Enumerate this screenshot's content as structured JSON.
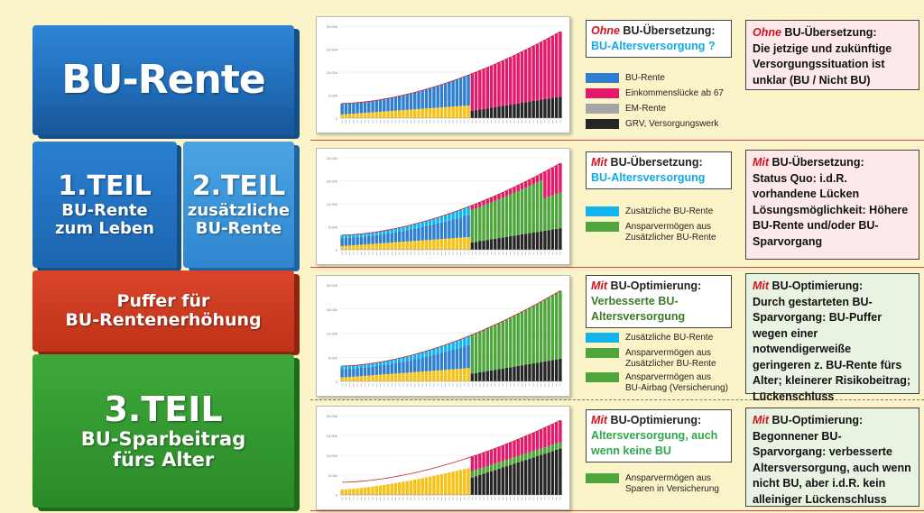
{
  "blocks": {
    "top": "BU-Rente",
    "teil1_title": "1.TEIL",
    "teil1_line1": "BU-Rente",
    "teil1_line2": "zum Leben",
    "teil2_title": "2.TEIL",
    "teil2_line1": "zusätzliche",
    "teil2_line2": "BU-Rente",
    "puffer_line1": "Puffer für",
    "puffer_line2": "BU-Rentenerhöhung",
    "teil3_title": "3.TEIL",
    "teil3_line1": "BU-Sparbeitrag",
    "teil3_line2": "fürs Alter"
  },
  "colors": {
    "bu_rente": "#2f7fd1",
    "einkommensluecke": "#e5196b",
    "em_rente": "#a5a5a5",
    "grv": "#262626",
    "zusaetzliche_bu": "#12b4f0",
    "anspar": "#4ea53c",
    "yellow_base": "#f6c21a",
    "trend_line": "#c0272d"
  },
  "rows": [
    {
      "q_em": "Ohne",
      "q_rest": " BU-Übersetzung:",
      "q_value": "BU-Altersversorgung ?",
      "legend": [
        {
          "label": "BU-Rente",
          "color": "#2f7fd1"
        },
        {
          "label": "Einkommenslücke ab 67",
          "color": "#e5196b"
        },
        {
          "label": "EM-Rente",
          "color": "#a5a5a5"
        },
        {
          "label": "GRV, Versorgungswerk",
          "color": "#262626"
        }
      ],
      "d_em": "Ohne",
      "d_head_rest": " BU-Übersetzung:",
      "d_text": "Die jetzige und zukünftige Versorgungssituation ist unklar (BU / Nicht BU)"
    },
    {
      "q_em": "Mit",
      "q_rest": " BU-Übersetzung:",
      "q_value": "BU-Altersversorgung",
      "legend": [
        {
          "label": "Zusätzliche BU-Rente",
          "color": "#12b4f0"
        },
        {
          "label": "Ansparvermögen aus",
          "label2": "Zusätzlicher BU-Rente",
          "color": "#4ea53c"
        }
      ],
      "d_em": "Mit",
      "d_head_rest": " BU-Übersetzung:",
      "d_text": "Status Quo: i.d.R. vorhandene Lücken Lösungsmöglichkeit: Höhere BU-Rente und/oder BU-Sparvorgang"
    },
    {
      "q_em": "Mit",
      "q_rest": " BU-Optimierung:",
      "q_value": "Verbesserte BU-Altersversorgung",
      "legend": [
        {
          "label": "Zusätzliche BU-Rente",
          "color": "#12b4f0"
        },
        {
          "label": "Ansparvermögen aus",
          "label2": "Zusätzlicher BU-Rente",
          "color": "#4ea53c"
        },
        {
          "label": "Ansparvermögen aus",
          "label2": "BU-Airbag (Versicherung)",
          "color": "#4ea53c"
        }
      ],
      "d_em": "Mit",
      "d_head_rest": " BU-Optimierung:",
      "d_text": "Durch gestarteten BU-Sparvorgang: BU-Puffer wegen einer notwendigerweiße geringeren z. BU-Rente fürs Alter; kleinerer Risikobeitrag; Lückenschluss"
    },
    {
      "q_em": "Mit",
      "q_rest": " BU-Optimierung:",
      "q_value": "Altersversorgung, auch wenn keine BU",
      "legend": [
        {
          "label": "Ansparvermögen aus",
          "label2": "Sparen in Versicherung",
          "color": "#4ea53c"
        }
      ],
      "d_em": "Mit",
      "d_head_rest": " BU-Optimierung:",
      "d_text": "Begonnener BU-Sparvorgang: verbesserte Altersversorgung, auch wenn nicht BU, aber i.d.R. kein alleiniger Lückenschluss"
    }
  ],
  "chart_data": [
    {
      "type": "bar",
      "title": "",
      "ylim": [
        0,
        20000
      ],
      "yticks": [
        "20.000",
        "15.000",
        "10.000",
        "5.000",
        "0"
      ],
      "n": 58,
      "split": 34,
      "series": [
        {
          "values_hint": "stacked: yellow base growing, blue BU-Rente on top before retirement; after split pink Einkommenslücke over black/grey GRV"
        }
      ]
    }
  ]
}
